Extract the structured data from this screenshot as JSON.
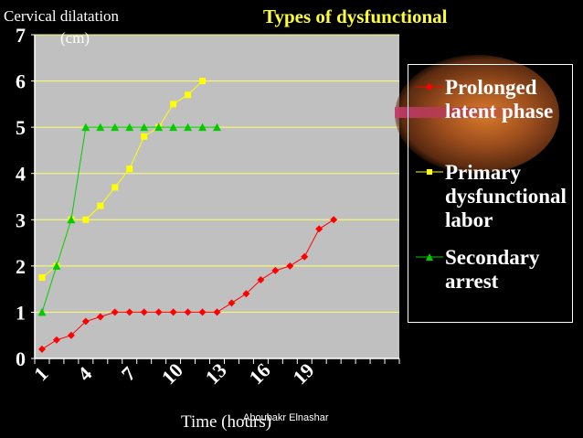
{
  "chart_data": {
    "type": "line",
    "title": "Types of dysfunctional",
    "ylabel": "Cervical dilatation",
    "ylabel_unit": "(cm)",
    "xlabel": "Time (hours)",
    "x": [
      1,
      2,
      3,
      4,
      5,
      6,
      7,
      8,
      9,
      10,
      11,
      12,
      13,
      14,
      15,
      16,
      17,
      18,
      19,
      20,
      21,
      22,
      23,
      24,
      25
    ],
    "x_tick_labels": [
      "1",
      "4",
      "7",
      "10",
      "13",
      "16",
      "19"
    ],
    "x_tick_values": [
      1,
      4,
      7,
      10,
      13,
      16,
      19
    ],
    "y_ticks": [
      "0",
      "1",
      "2",
      "3",
      "4",
      "5",
      "6",
      "7"
    ],
    "ylim": [
      0,
      7
    ],
    "grid": "horizontal",
    "legend_position": "right",
    "series": [
      {
        "name": "Prolonged latent phase",
        "color": "#ff0000",
        "marker": "diamond",
        "points": [
          [
            1,
            0.2
          ],
          [
            2,
            0.4
          ],
          [
            3,
            0.5
          ],
          [
            4,
            0.8
          ],
          [
            5,
            0.9
          ],
          [
            6,
            1.0
          ],
          [
            7,
            1.0
          ],
          [
            8,
            1.0
          ],
          [
            9,
            1.0
          ],
          [
            10,
            1.0
          ],
          [
            11,
            1.0
          ],
          [
            12,
            1.0
          ],
          [
            13,
            1.0
          ],
          [
            14,
            1.2
          ],
          [
            15,
            1.4
          ],
          [
            16,
            1.7
          ],
          [
            17,
            1.9
          ],
          [
            18,
            2.0
          ],
          [
            19,
            2.2
          ],
          [
            20,
            2.8
          ],
          [
            21,
            3.0
          ]
        ]
      },
      {
        "name": "Primary dysfunctional labor",
        "color": "#ffff00",
        "marker": "square",
        "points": [
          [
            1,
            1.75
          ],
          [
            2,
            2.0
          ],
          [
            3,
            3.0
          ],
          [
            4,
            3.0
          ],
          [
            5,
            3.3
          ],
          [
            6,
            3.7
          ],
          [
            7,
            4.1
          ],
          [
            8,
            4.8
          ],
          [
            9,
            5.0
          ],
          [
            10,
            5.5
          ],
          [
            11,
            5.7
          ],
          [
            12,
            6.0
          ]
        ]
      },
      {
        "name": "Secondary arrest",
        "color": "#00cc00",
        "marker": "triangle",
        "points": [
          [
            1,
            1.0
          ],
          [
            2,
            2.0
          ],
          [
            3,
            3.0
          ],
          [
            4,
            5.0
          ],
          [
            5,
            5.0
          ],
          [
            6,
            5.0
          ],
          [
            7,
            5.0
          ],
          [
            8,
            5.0
          ],
          [
            9,
            5.0
          ],
          [
            10,
            5.0
          ],
          [
            11,
            5.0
          ],
          [
            12,
            5.0
          ],
          [
            13,
            5.0
          ]
        ]
      }
    ],
    "legend": [
      {
        "label": "Prolonged\nlatent phase",
        "color": "#ff0000",
        "marker": "diamond"
      },
      {
        "label": "Primary\ndysfunctional\nlabor",
        "color": "#ffff00",
        "marker": "square"
      },
      {
        "label": "Secondary\narrest",
        "color": "#00cc00",
        "marker": "triangle"
      }
    ]
  },
  "watermark": "Aboubakr Elnashar"
}
